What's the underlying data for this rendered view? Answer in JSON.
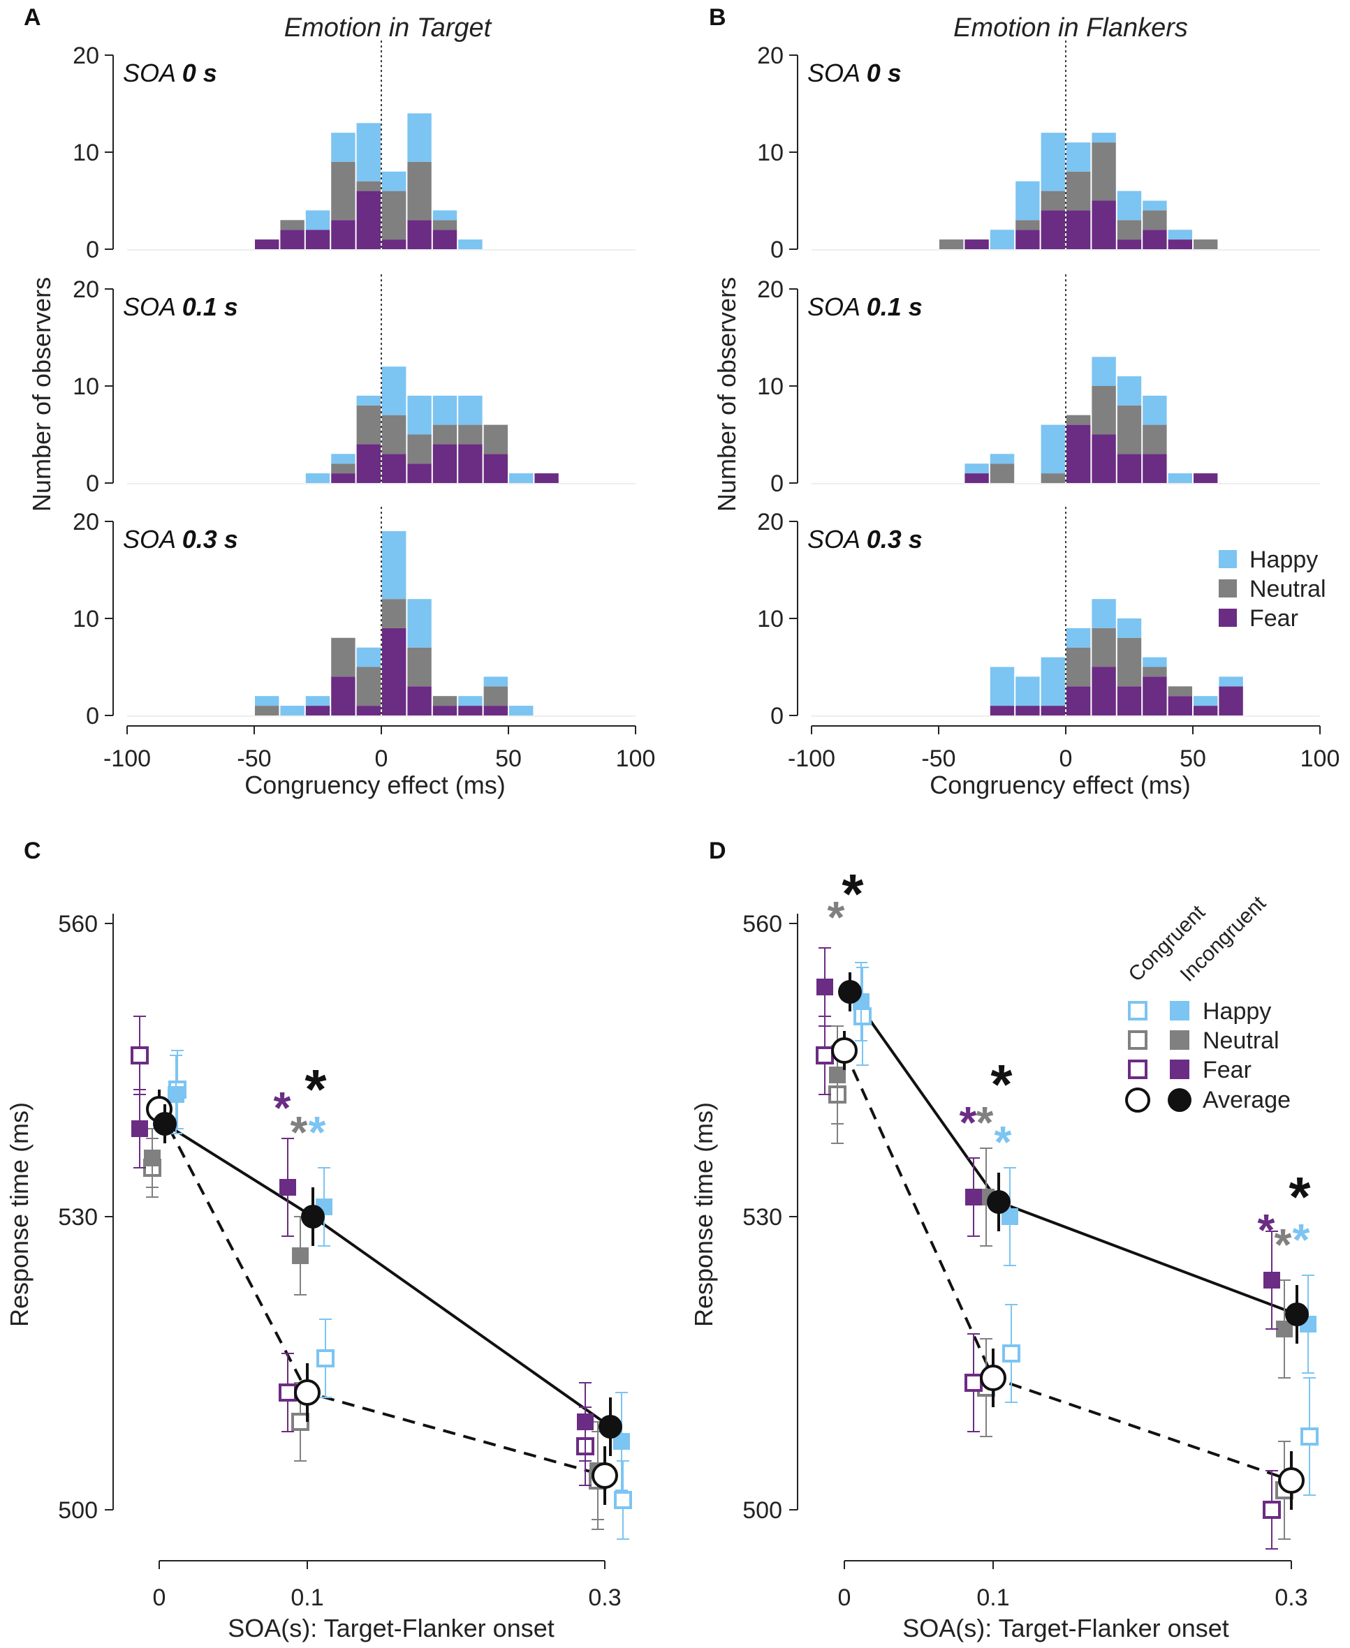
{
  "colors": {
    "happy": "#7cc4f2",
    "neutral": "#808080",
    "fear": "#6b2c83",
    "axis": "#222222",
    "white": "#ffffff",
    "black": "#111111"
  },
  "shared": {
    "hist_ylabel": "Number of observers",
    "hist_xlabel": "Congruency effect (ms)",
    "hist_xticks": [
      "-100",
      "-50",
      "0",
      "50",
      "100"
    ],
    "hist_yticks": [
      "0",
      "10",
      "20"
    ],
    "soa_prefix": "SOA",
    "line_ylabel": "Response time (ms)",
    "line_xlabel": "SOA(s): Target-Flanker onset",
    "line_xticks": [
      "0",
      "0.1",
      "0.3"
    ],
    "line_yticks": [
      "500",
      "530",
      "560"
    ],
    "star": "*"
  },
  "chart_data": [
    {
      "panel": "A",
      "type": "bar",
      "stacked": true,
      "title": "Emotion in Target",
      "xlabel": "Congruency effect (ms)",
      "ylabel": "Number of observers",
      "xlim": [
        -100,
        100
      ],
      "ylim": [
        0,
        20
      ],
      "bin_width": 10,
      "subplots": [
        {
          "soa": "0 s",
          "bins": [
            -50,
            -40,
            -30,
            -20,
            -10,
            0,
            10,
            20,
            30
          ],
          "fear": [
            1,
            2,
            2,
            3,
            6,
            1,
            3,
            2,
            0
          ],
          "neutral": [
            0,
            1,
            0,
            6,
            1,
            5,
            6,
            1,
            0
          ],
          "happy": [
            0,
            0,
            2,
            3,
            6,
            2,
            5,
            1,
            1
          ]
        },
        {
          "soa": "0.1 s",
          "bins": [
            -30,
            -20,
            -10,
            0,
            10,
            20,
            30,
            40,
            50,
            60
          ],
          "fear": [
            0,
            1,
            4,
            3,
            2,
            4,
            4,
            3,
            0,
            1
          ],
          "neutral": [
            0,
            1,
            4,
            4,
            3,
            2,
            2,
            3,
            0,
            0
          ],
          "happy": [
            1,
            1,
            1,
            5,
            4,
            3,
            3,
            0,
            1,
            0
          ]
        },
        {
          "soa": "0.3 s",
          "bins": [
            -50,
            -40,
            -30,
            -20,
            -10,
            0,
            10,
            20,
            30,
            40,
            50
          ],
          "fear": [
            0,
            0,
            1,
            4,
            1,
            9,
            3,
            1,
            1,
            1,
            0
          ],
          "neutral": [
            1,
            0,
            0,
            4,
            4,
            3,
            4,
            1,
            0,
            2,
            0
          ],
          "happy": [
            1,
            1,
            1,
            0,
            2,
            7,
            5,
            0,
            1,
            1,
            1
          ]
        }
      ]
    },
    {
      "panel": "B",
      "type": "bar",
      "stacked": true,
      "title": "Emotion in Flankers",
      "xlabel": "Congruency effect (ms)",
      "ylabel": "Number of observers",
      "xlim": [
        -100,
        100
      ],
      "ylim": [
        0,
        20
      ],
      "bin_width": 10,
      "legend": [
        "Happy",
        "Neutral",
        "Fear"
      ],
      "subplots": [
        {
          "soa": "0 s",
          "bins": [
            -50,
            -40,
            -30,
            -20,
            -10,
            0,
            10,
            20,
            30,
            40,
            50
          ],
          "fear": [
            0,
            1,
            0,
            2,
            4,
            4,
            5,
            1,
            2,
            1,
            0
          ],
          "neutral": [
            1,
            0,
            0,
            1,
            2,
            4,
            6,
            2,
            2,
            0,
            1
          ],
          "happy": [
            0,
            0,
            2,
            4,
            6,
            3,
            1,
            3,
            1,
            1,
            0
          ]
        },
        {
          "soa": "0.1 s",
          "bins": [
            -40,
            -30,
            -20,
            -10,
            0,
            10,
            20,
            30,
            40,
            50
          ],
          "fear": [
            1,
            0,
            0,
            0,
            6,
            5,
            3,
            3,
            0,
            1
          ],
          "neutral": [
            0,
            2,
            0,
            1,
            1,
            5,
            5,
            3,
            0,
            0
          ],
          "happy": [
            1,
            1,
            0,
            5,
            0,
            3,
            3,
            3,
            1,
            0
          ]
        },
        {
          "soa": "0.3 s",
          "bins": [
            -30,
            -20,
            -10,
            0,
            10,
            20,
            30,
            40,
            50,
            60
          ],
          "fear": [
            1,
            1,
            1,
            3,
            5,
            3,
            4,
            2,
            1,
            3
          ],
          "neutral": [
            0,
            0,
            0,
            4,
            4,
            5,
            1,
            1,
            0,
            0
          ],
          "happy": [
            4,
            3,
            5,
            2,
            3,
            2,
            1,
            0,
            1,
            1
          ]
        }
      ]
    },
    {
      "panel": "C",
      "type": "line",
      "xlabel": "SOA(s): Target-Flanker onset",
      "ylabel": "Response time (ms)",
      "ylim": [
        498,
        562
      ],
      "x": [
        0,
        0.1,
        0.3
      ],
      "x_tick_labels": [
        "0",
        "0.1",
        "0.3"
      ],
      "series": [
        {
          "name": "Congruent Happy",
          "filled": false,
          "color": "happy",
          "values": [
            543,
            515.5,
            501
          ],
          "err": [
            4,
            4,
            4
          ]
        },
        {
          "name": "Incongruent Happy",
          "filled": true,
          "color": "happy",
          "values": [
            542.5,
            531,
            507
          ],
          "err": [
            4,
            4,
            5
          ]
        },
        {
          "name": "Congruent Neutral",
          "filled": false,
          "color": "neutral",
          "values": [
            535,
            509,
            503
          ],
          "err": [
            3,
            4,
            5
          ]
        },
        {
          "name": "Incongruent Neutral",
          "filled": true,
          "color": "neutral",
          "values": [
            536,
            526,
            504
          ],
          "err": [
            3,
            4,
            5
          ]
        },
        {
          "name": "Congruent Fear",
          "filled": false,
          "color": "fear",
          "values": [
            546.5,
            512,
            506.5
          ],
          "err": [
            4,
            4,
            4
          ]
        },
        {
          "name": "Incongruent Fear",
          "filled": true,
          "color": "fear",
          "values": [
            539,
            533,
            509
          ],
          "err": [
            4,
            5,
            4
          ]
        },
        {
          "name": "Congruent Average",
          "filled": false,
          "color": "white",
          "values": [
            541,
            512,
            503.5
          ],
          "err": [
            2,
            3,
            3
          ]
        },
        {
          "name": "Incongruent Average",
          "filled": true,
          "color": "black",
          "values": [
            539.5,
            530,
            508.5
          ],
          "err": [
            2,
            3,
            3
          ]
        }
      ],
      "significance": [
        {
          "x": 0.1,
          "stars": [
            {
              "color": "fear",
              "value": 542
            },
            {
              "color": "neutral",
              "value": 539.5
            },
            {
              "color": "happy",
              "value": 539.5
            },
            {
              "color": "black",
              "value": 543.5
            }
          ]
        }
      ]
    },
    {
      "panel": "D",
      "type": "line",
      "xlabel": "SOA(s): Target-Flanker onset",
      "ylabel": "Response time (ms)",
      "ylim": [
        498,
        562
      ],
      "x": [
        0,
        0.1,
        0.3
      ],
      "x_tick_labels": [
        "0",
        "0.1",
        "0.3"
      ],
      "legend": {
        "columns": [
          "Congruent",
          "Incongruent"
        ],
        "rows": [
          "Happy",
          "Neutral",
          "Fear",
          "Average"
        ]
      },
      "series": [
        {
          "name": "Congruent Happy",
          "filled": false,
          "color": "happy",
          "values": [
            550.5,
            516,
            507.5
          ],
          "err": [
            5,
            5,
            6
          ]
        },
        {
          "name": "Incongruent Happy",
          "filled": true,
          "color": "happy",
          "values": [
            552,
            530,
            519
          ],
          "err": [
            4,
            5,
            5
          ]
        },
        {
          "name": "Congruent Neutral",
          "filled": false,
          "color": "neutral",
          "values": [
            542.5,
            512.5,
            502
          ],
          "err": [
            5,
            5,
            5
          ]
        },
        {
          "name": "Incongruent Neutral",
          "filled": true,
          "color": "neutral",
          "values": [
            544.5,
            532,
            518.5
          ],
          "err": [
            5,
            5,
            5
          ]
        },
        {
          "name": "Congruent Fear",
          "filled": false,
          "color": "fear",
          "values": [
            546.5,
            513,
            500
          ],
          "err": [
            4,
            5,
            4
          ]
        },
        {
          "name": "Incongruent Fear",
          "filled": true,
          "color": "fear",
          "values": [
            553.5,
            532,
            523.5
          ],
          "err": [
            4,
            4,
            5
          ]
        },
        {
          "name": "Congruent Average",
          "filled": false,
          "color": "white",
          "values": [
            547,
            513.5,
            503
          ],
          "err": [
            2,
            3,
            3
          ]
        },
        {
          "name": "Incongruent Average",
          "filled": true,
          "color": "black",
          "values": [
            553,
            531.5,
            520
          ],
          "err": [
            2,
            3,
            3
          ]
        }
      ],
      "significance": [
        {
          "x": 0,
          "stars": [
            {
              "color": "neutral",
              "value": 561.5
            },
            {
              "color": "black",
              "value": 563.5
            }
          ]
        },
        {
          "x": 0.1,
          "stars": [
            {
              "color": "fear",
              "value": 540.5
            },
            {
              "color": "neutral",
              "value": 540.5
            },
            {
              "color": "happy",
              "value": 538.5
            },
            {
              "color": "black",
              "value": 544
            }
          ]
        },
        {
          "x": 0.3,
          "stars": [
            {
              "color": "fear",
              "value": 529.5
            },
            {
              "color": "neutral",
              "value": 528
            },
            {
              "color": "happy",
              "value": 528.5
            },
            {
              "color": "black",
              "value": 532.5
            }
          ]
        }
      ]
    }
  ]
}
